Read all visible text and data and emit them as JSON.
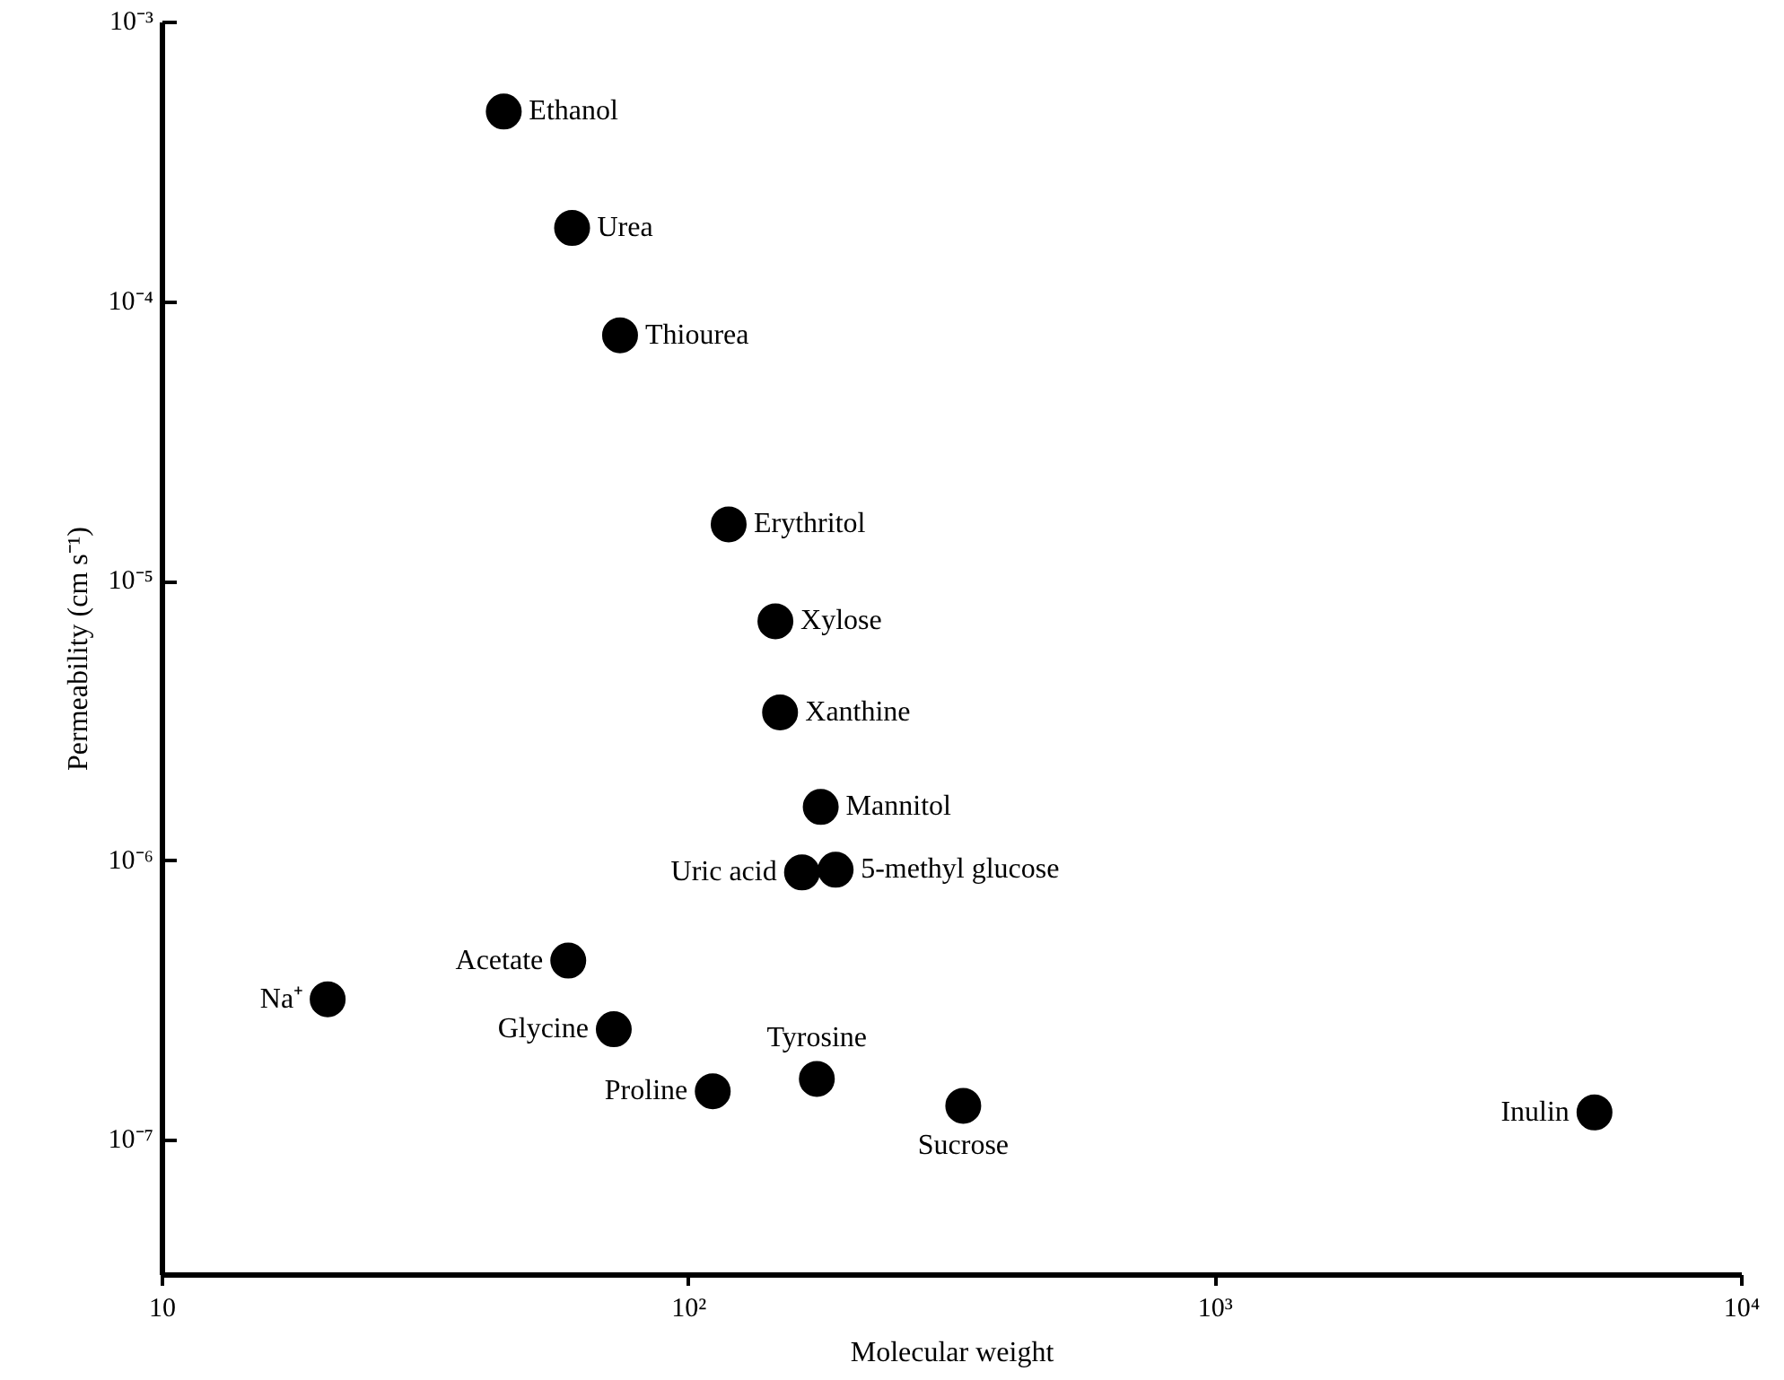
{
  "chart_data": {
    "type": "scatter",
    "xlabel": "Molecular weight",
    "ylabel": "Permeability (cm s⁻¹)",
    "log": "xy",
    "grid": false,
    "marker": "circle",
    "xlim": [
      10,
      10000
    ],
    "xticks": [
      {
        "value": 10,
        "label": "10"
      },
      {
        "value": 100,
        "label": "10²"
      },
      {
        "value": 1000,
        "label": "10³"
      },
      {
        "value": 10000,
        "label": "10⁴"
      }
    ],
    "ylim": [
      3.3e-08,
      0.001
    ],
    "yticks": [
      {
        "value": 1e-07,
        "label": "10⁻⁷"
      },
      {
        "value": 1e-06,
        "label": "10⁻⁶"
      },
      {
        "value": 1e-05,
        "label": "10⁻⁵"
      },
      {
        "value": 0.0001,
        "label": "10⁻⁴"
      },
      {
        "value": 0.001,
        "label": "10⁻³"
      }
    ],
    "series": [
      {
        "color": "#000000",
        "x": [
          44.5,
          60,
          74,
          119,
          146,
          149,
          178,
          164,
          190,
          59,
          20.6,
          72,
          111,
          175,
          332,
          5250
        ],
        "values": [
          0.00048,
          0.000184,
          7.6e-05,
          1.6e-05,
          7.2e-06,
          3.4e-06,
          1.56e-06,
          9.1e-07,
          9.3e-07,
          4.4e-07,
          3.2e-07,
          2.5e-07,
          1.5e-07,
          1.66e-07,
          1.33e-07,
          1.26e-07
        ]
      }
    ],
    "annotations": [
      {
        "text": "Ethanol",
        "x": 44.5,
        "y": 0.00048
      },
      {
        "text": "Urea",
        "x": 60,
        "y": 0.000184
      },
      {
        "text": "Thiourea",
        "x": 74,
        "y": 7.6e-05
      },
      {
        "text": "Erythritol",
        "x": 119,
        "y": 1.6e-05
      },
      {
        "text": "Xylose",
        "x": 146,
        "y": 7.2e-06
      },
      {
        "text": "Xanthine",
        "x": 149,
        "y": 3.4e-06
      },
      {
        "text": "Mannitol",
        "x": 178,
        "y": 1.56e-06
      },
      {
        "text": "Uric acid",
        "x": 164,
        "y": 9.1e-07
      },
      {
        "text": "5-methyl glucose",
        "x": 190,
        "y": 9.3e-07
      },
      {
        "text": "Acetate",
        "x": 59,
        "y": 4.4e-07
      },
      {
        "text": "Na⁺",
        "x": 20.6,
        "y": 3.2e-07
      },
      {
        "text": "Glycine",
        "x": 72,
        "y": 2.5e-07
      },
      {
        "text": "Proline",
        "x": 111,
        "y": 1.5e-07
      },
      {
        "text": "Tyrosine",
        "x": 175,
        "y": 1.66e-07
      },
      {
        "text": "Sucrose",
        "x": 332,
        "y": 1.33e-07
      },
      {
        "text": "Inulin",
        "x": 5250,
        "y": 1.26e-07
      }
    ]
  }
}
